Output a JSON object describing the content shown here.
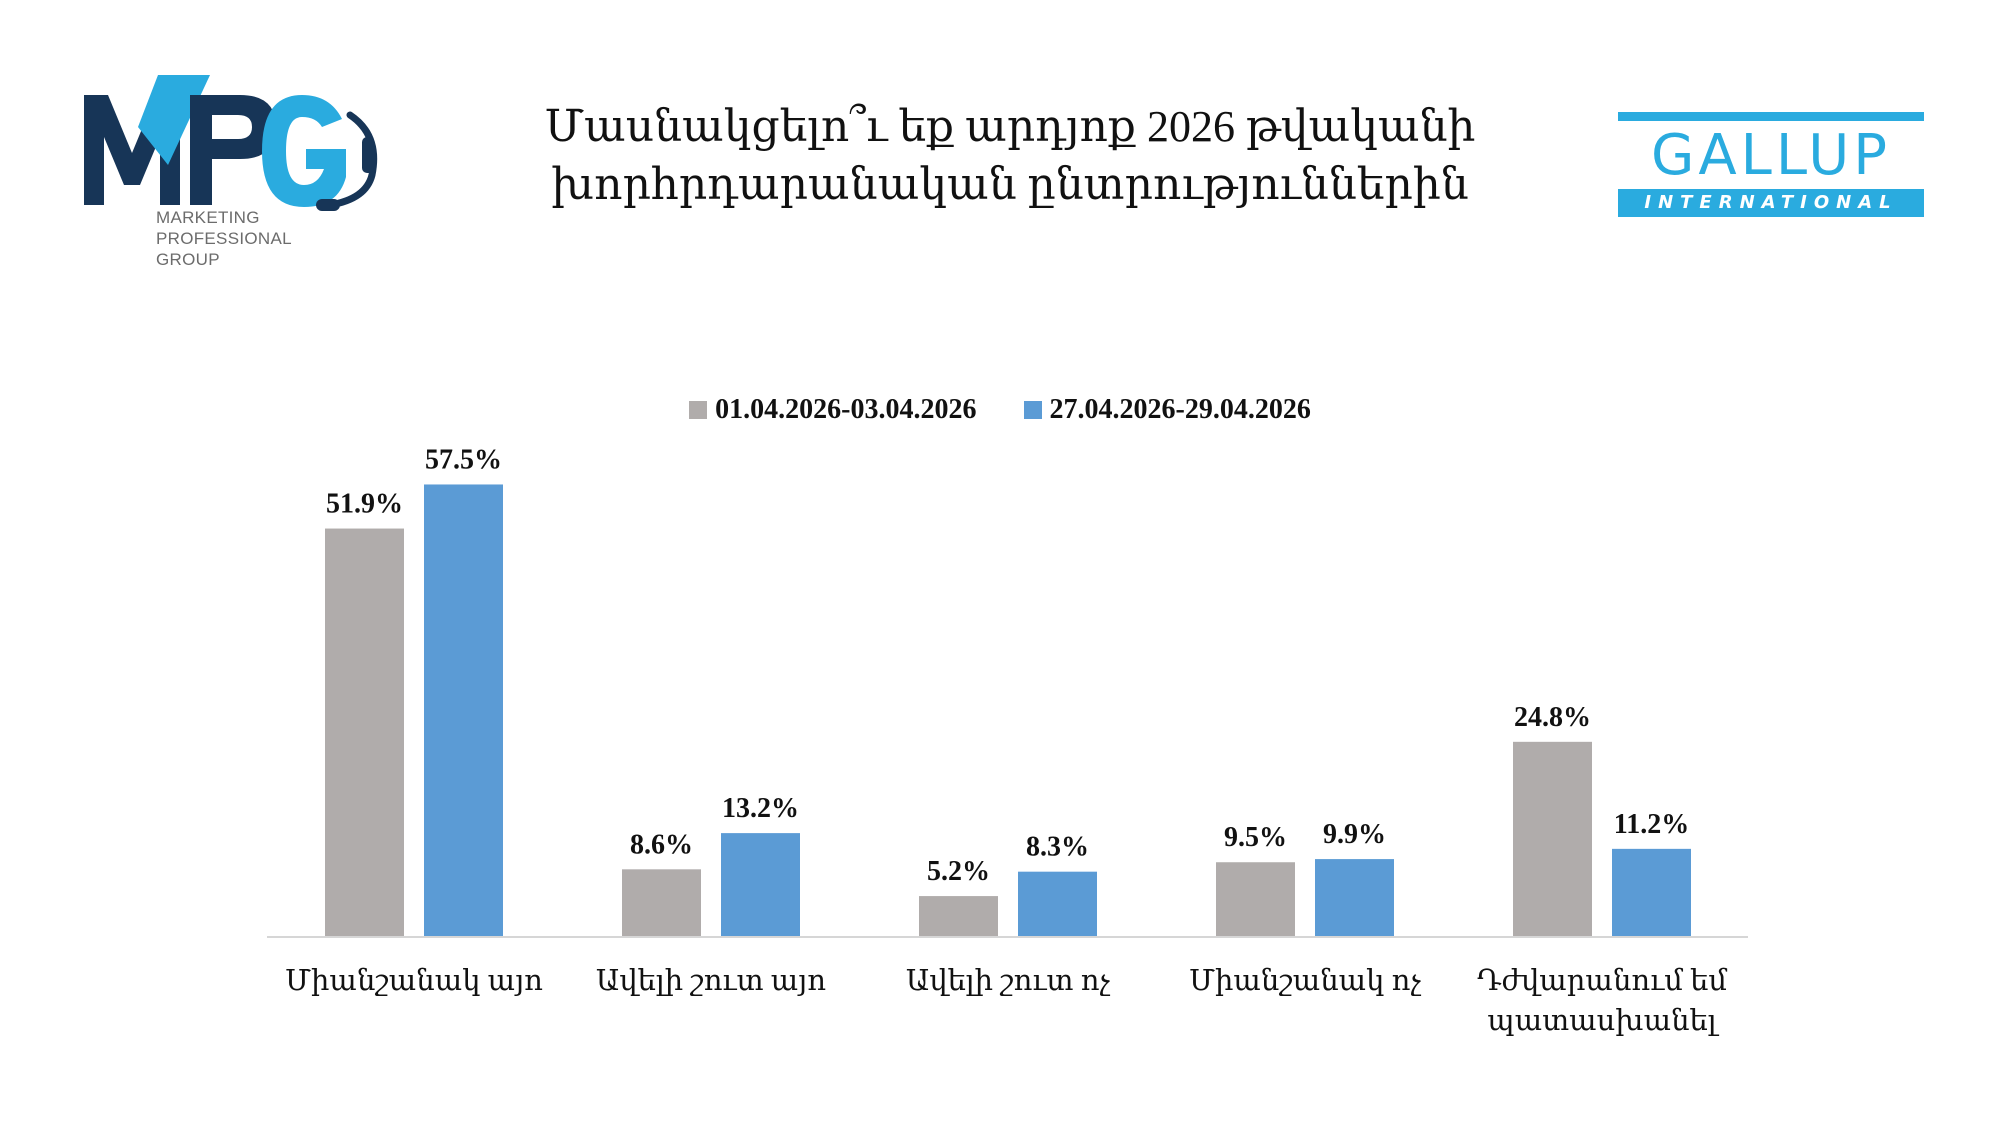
{
  "title_line1": "Մասնակցելո՞ւ եք արդյոք 2026 թվականի",
  "title_line2": "խորհրդարանական ընտրություններին",
  "logos": {
    "mpg": {
      "mark": "MPG",
      "line1": "MARKETING",
      "line2": "PROFESSIONAL",
      "line3": "GROUP",
      "color_dark": "#173557",
      "color_accent": "#2aabdf"
    },
    "gallup": {
      "word": "GALLUP",
      "sub": "INTERNATIONAL",
      "color": "#2aabdf"
    }
  },
  "chart_data": {
    "type": "bar",
    "categories": [
      "Միանշանակ այո",
      "Ավելի շուտ այո",
      "Ավելի շուտ ոչ",
      "Միանշանակ ոչ",
      "Դժվարանում եմ պատասխանել"
    ],
    "category_lines": [
      [
        "Միանշանակ այո"
      ],
      [
        "Ավելի շուտ այո"
      ],
      [
        "Ավելի շուտ ոչ"
      ],
      [
        "Միանշանակ ոչ"
      ],
      [
        "Դժվարանում եմ",
        "պատասխանել"
      ]
    ],
    "series": [
      {
        "name": "01.04.2026-03.04.2026",
        "color": "#b0acab",
        "values": [
          51.9,
          8.6,
          5.2,
          9.5,
          24.8
        ],
        "labels": [
          "51.9%",
          "8.6%",
          "5.2%",
          "9.5%",
          "24.8%"
        ]
      },
      {
        "name": "27.04.2026-29.04.2026",
        "color": "#5b9bd5",
        "values": [
          57.5,
          13.2,
          8.3,
          9.9,
          11.2
        ],
        "labels": [
          "57.5%",
          "13.2%",
          "8.3%",
          "9.9%",
          "11.2%"
        ]
      }
    ],
    "unit": "%",
    "legend_position": "top",
    "grid": false
  }
}
